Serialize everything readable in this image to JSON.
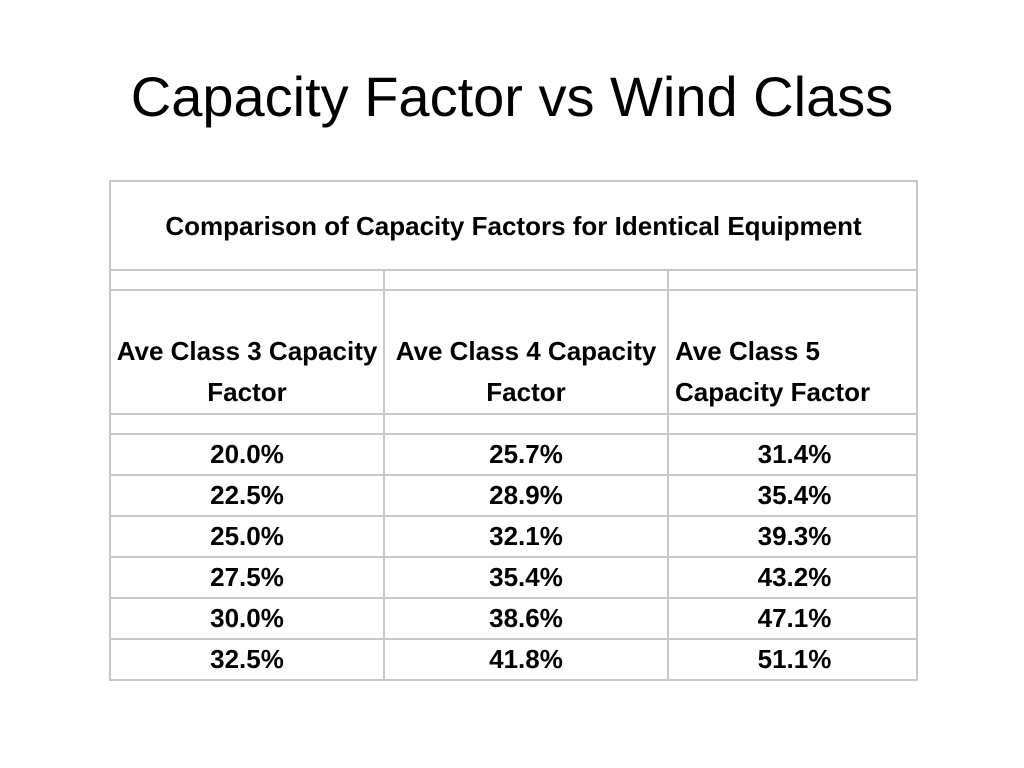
{
  "slide": {
    "title": "Capacity Factor vs Wind Class"
  },
  "table": {
    "caption": "Comparison of Capacity Factors for Identical Equipment",
    "headers": [
      "Ave Class 3 Capacity Factor",
      "Ave Class 4 Capacity Factor",
      "Ave Class 5 Capacity Factor"
    ],
    "rows": [
      [
        "20.0%",
        "25.7%",
        "31.4%"
      ],
      [
        "22.5%",
        "28.9%",
        "35.4%"
      ],
      [
        "25.0%",
        "32.1%",
        "39.3%"
      ],
      [
        "27.5%",
        "35.4%",
        "43.2%"
      ],
      [
        "30.0%",
        "38.6%",
        "47.1%"
      ],
      [
        "32.5%",
        "41.8%",
        "51.1%"
      ]
    ]
  }
}
